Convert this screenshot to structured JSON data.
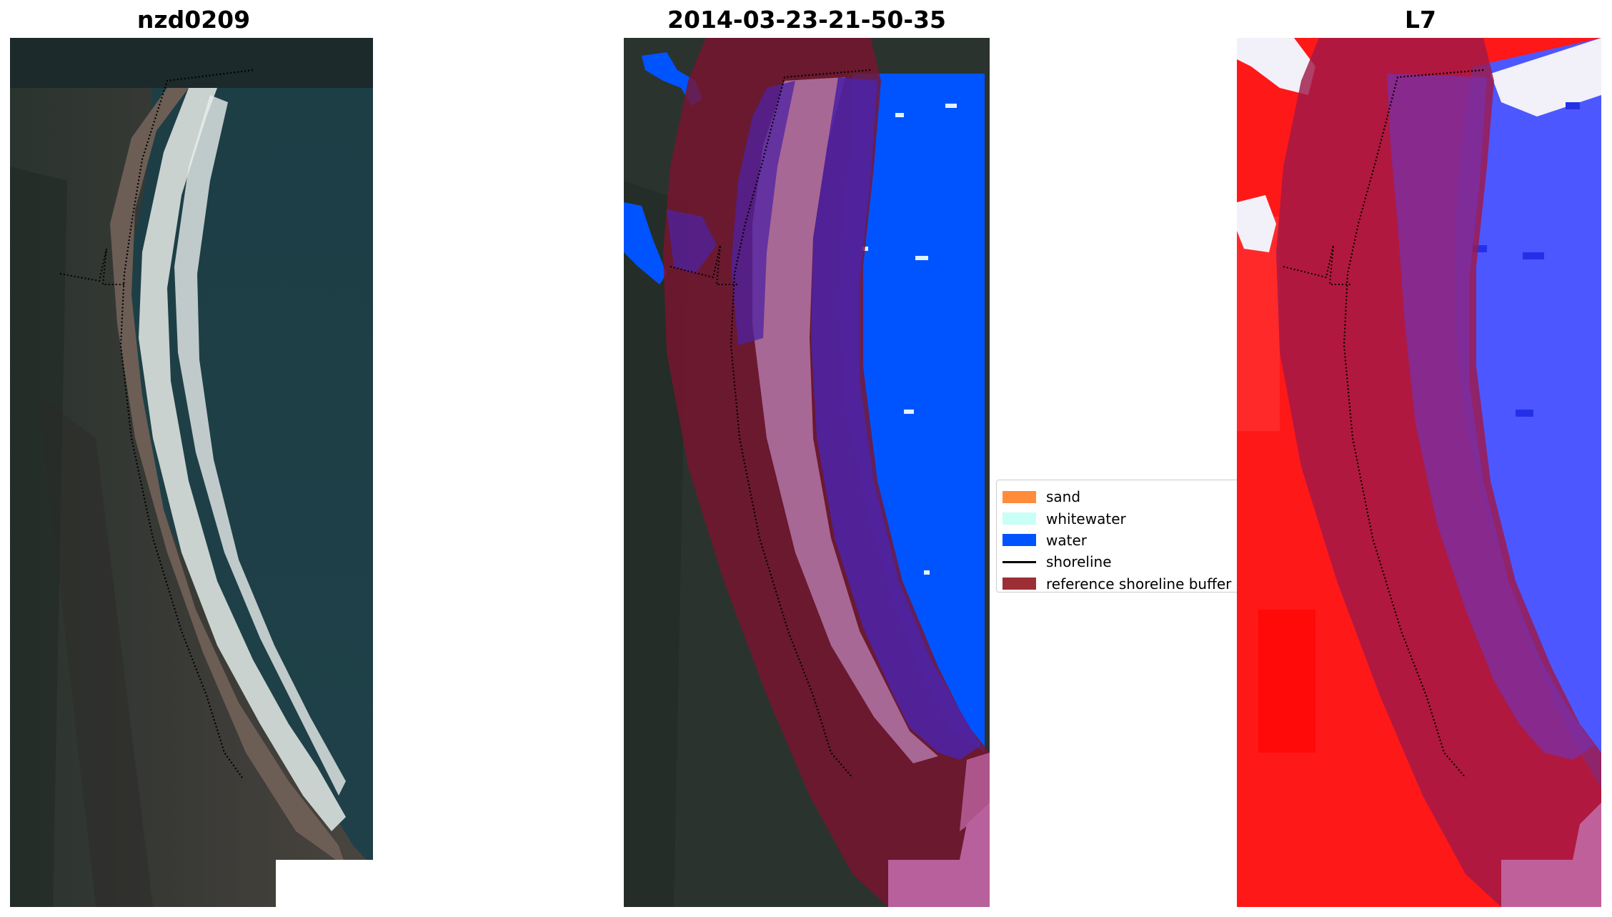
{
  "panels": [
    {
      "title": "nzd0209"
    },
    {
      "title": "2014-03-23-21-50-35"
    },
    {
      "title": "L7"
    }
  ],
  "legend": {
    "items": [
      {
        "label": "sand",
        "color": "#ff8c3a",
        "kind": "patch"
      },
      {
        "label": "whitewater",
        "color": "#c8fff6",
        "kind": "patch"
      },
      {
        "label": "water",
        "color": "#0054ff",
        "kind": "patch"
      },
      {
        "label": "shoreline",
        "color": "#000000",
        "kind": "line"
      },
      {
        "label": "reference shoreline buffer",
        "color": "#9b2f35",
        "kind": "patch"
      }
    ]
  },
  "colors": {
    "water": "#0054ff",
    "buffer": "#9b2f35",
    "sand_overlay": "#a86895",
    "index_positive": "#ff1010",
    "index_negative": "#4d57ff"
  }
}
